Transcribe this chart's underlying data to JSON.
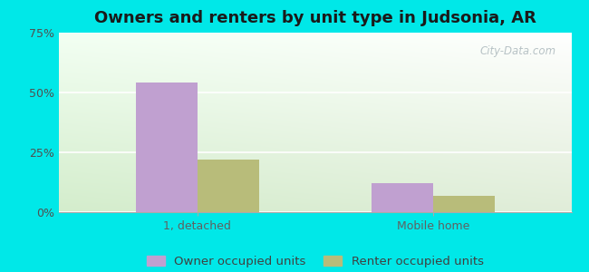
{
  "title": "Owners and renters by unit type in Judsonia, AR",
  "categories": [
    "1, detached",
    "Mobile home"
  ],
  "owner_values": [
    54,
    12
  ],
  "renter_values": [
    22,
    7
  ],
  "owner_color": "#c0a0d0",
  "renter_color": "#b8bc7a",
  "bar_width": 0.12,
  "ylim": [
    0,
    75
  ],
  "yticks": [
    0,
    25,
    50,
    75
  ],
  "ytick_labels": [
    "0%",
    "25%",
    "50%",
    "75%"
  ],
  "background_color": "#00e8e8",
  "title_fontsize": 13,
  "tick_fontsize": 9,
  "legend_fontsize": 9.5,
  "watermark": "City-Data.com",
  "watermark_color": "#b0bcc0",
  "group_centers": [
    0.27,
    0.73
  ],
  "xlim": [
    0.0,
    1.0
  ]
}
